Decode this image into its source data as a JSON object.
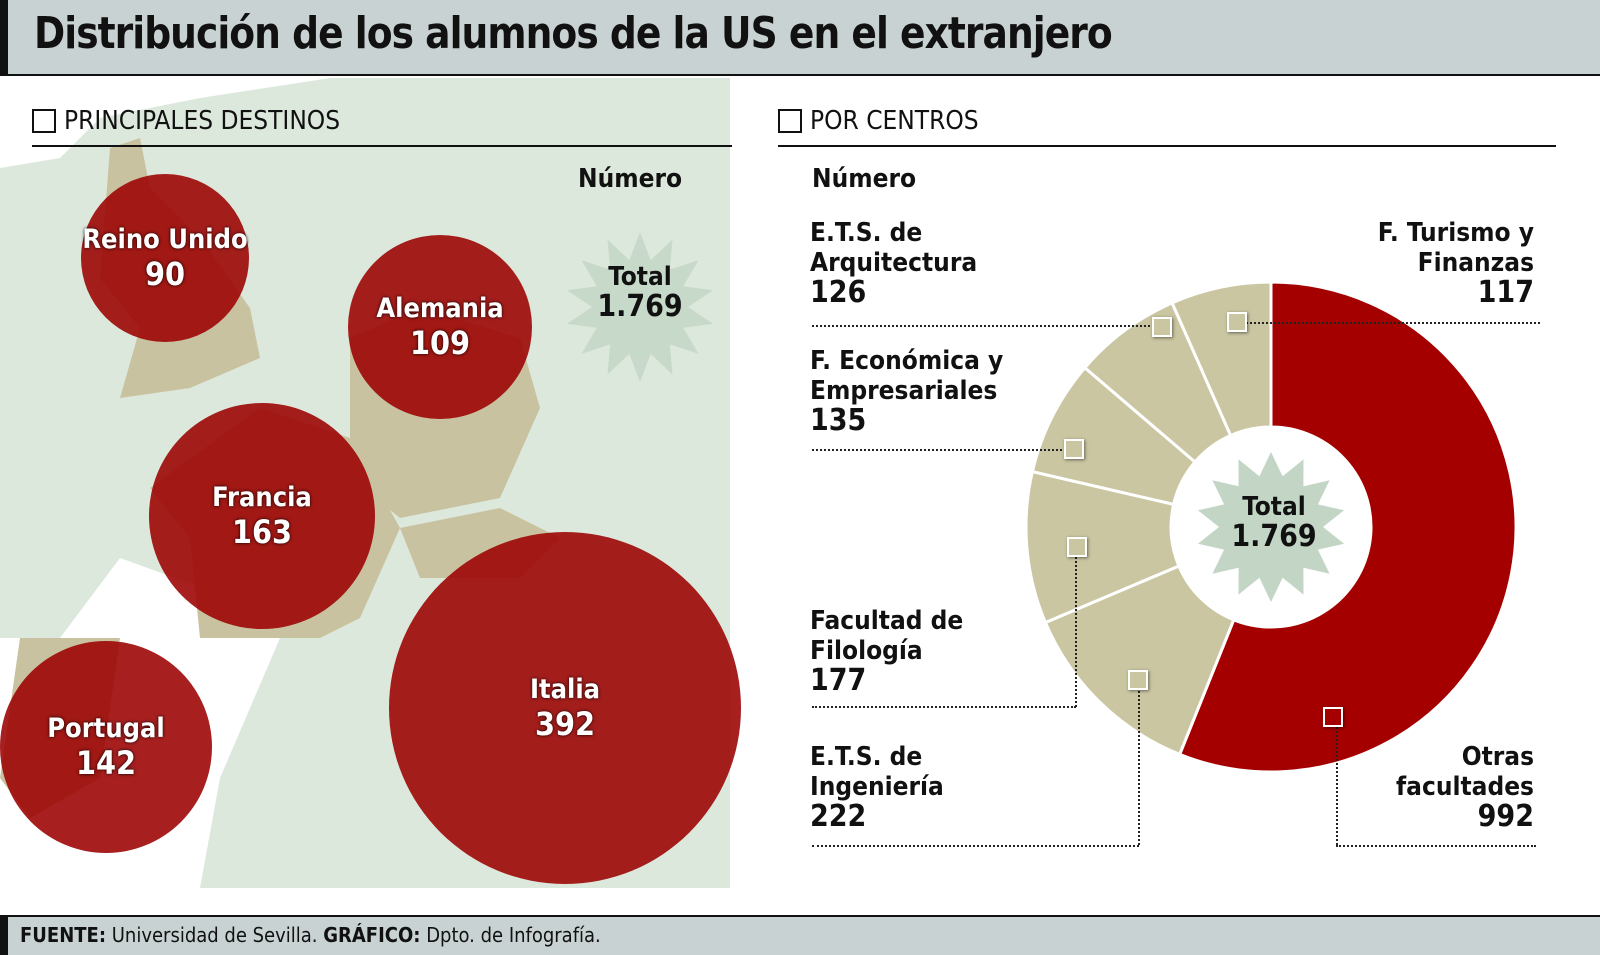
{
  "title": "Distribución de los alumnos de la US en el extranjero",
  "footer": {
    "source_label": "FUENTE:",
    "source": "Universidad de Sevilla.",
    "graphic_label": "GRÁFICO:",
    "graphic": "Dpto. de Infografía."
  },
  "chart_data": [
    {
      "type": "bubble-map",
      "title": "PRINCIPALES DESTINOS",
      "unit_label": "Número",
      "total_label": "Total",
      "total": "1.769",
      "categories": [
        "Reino Unido",
        "Alemania",
        "Francia",
        "Portugal",
        "Italia"
      ],
      "values": [
        "90",
        "109",
        "163",
        "142",
        "392"
      ],
      "color": "#9b0000"
    },
    {
      "type": "pie",
      "title": "POR CENTROS",
      "unit_label": "Número",
      "total_label": "Total",
      "total": "1.769",
      "slices": [
        {
          "label": "Otras facultades",
          "value": 992,
          "display": "992",
          "color": "#a40000"
        },
        {
          "label": "E.T.S. de Ingeniería",
          "value": 222,
          "display": "222",
          "color": "#cac6a2"
        },
        {
          "label": "Facultad de Filología",
          "value": 177,
          "display": "177",
          "color": "#cac6a2"
        },
        {
          "label": "F. Económica y Empresariales",
          "value": 135,
          "display": "135",
          "color": "#cac6a2"
        },
        {
          "label": "E.T.S. de Arquitectura",
          "value": 126,
          "display": "126",
          "color": "#cac6a2"
        },
        {
          "label": "F. Turismo y Finanzas",
          "value": 117,
          "display": "117",
          "color": "#cac6a2"
        }
      ]
    }
  ]
}
